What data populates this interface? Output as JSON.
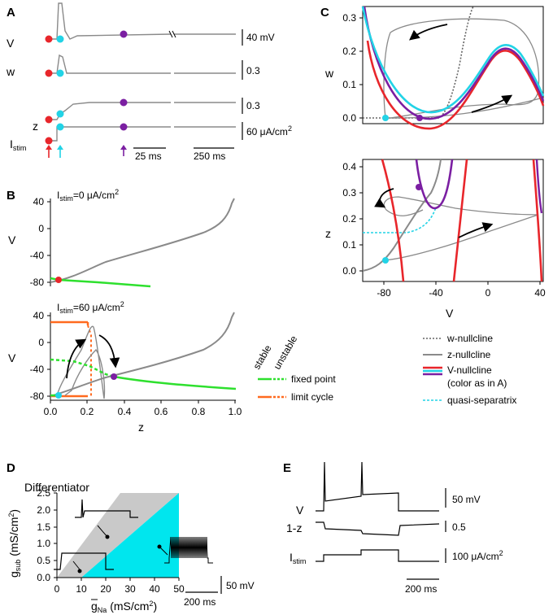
{
  "panels": {
    "a": "A",
    "b": "B",
    "c": "C",
    "d": "D",
    "e": "E"
  },
  "panel_a": {
    "row_labels": {
      "v": "V",
      "w": "w",
      "z": "z",
      "istim": "I",
      "istim_sub": "stim"
    },
    "scales": {
      "v": "40 mV",
      "w": "0.3",
      "z": "0.3",
      "i": "60 μA/cm",
      "i_sup": "2",
      "t_short": "25 ms",
      "t_long": "250 ms"
    },
    "colors": {
      "red": "#e8262b",
      "cyan": "#22d3e6",
      "purple": "#7b1fa2",
      "trace": "#8a8a8a"
    }
  },
  "panel_b": {
    "top_title": "I",
    "top_title_sub": "stim",
    "top_title_value": "=0 μA/cm",
    "bottom_title_value": "=60 μA/cm",
    "title_sup": "2",
    "ylabel": "V",
    "xlabel": "z",
    "yticks": [
      "40",
      "0",
      "-40",
      "-80"
    ],
    "xticks": [
      "0.0",
      "0.2",
      "0.4",
      "0.6",
      "0.8",
      "1.0"
    ],
    "legend_headers": {
      "stable": "stable",
      "unstable": "unstable"
    },
    "legend_items": {
      "fixed_point": "fixed point",
      "limit_cycle": "limit cycle"
    },
    "colors": {
      "fixed_point": "#2ee02e",
      "limit_cycle": "#ff6a1f",
      "nullcline": "#8a8a8a"
    }
  },
  "panel_c": {
    "top_ylabel": "w",
    "top_yticks": [
      "0.3",
      "0.2",
      "0.1",
      "0.0"
    ],
    "bottom_ylabel": "z",
    "bottom_yticks": [
      "0.4",
      "0.3",
      "0.2",
      "0.1",
      "0.0"
    ],
    "xlabel": "V",
    "xticks": [
      "-80",
      "-40",
      "0",
      "40"
    ],
    "legend": {
      "w_nullcline": "w-nullcline",
      "z_nullcline": "z-nullcline",
      "v_nullcline": "V-nullcline",
      "v_nullcline_note": "(color as in A)",
      "quasi_separatrix": "quasi-separatrix"
    }
  },
  "panel_d": {
    "title": "Differentiator",
    "ylabel": "g",
    "ylabel_sub": "sub",
    "ylabel_unit": " (mS/cm",
    "ylabel_sup": "2",
    "xlabel": "g",
    "xlabel_sub": "Na",
    "xlabel_unit": " (mS/cm",
    "xlabel_sup": "2",
    "yticks": [
      "2.5",
      "2.0",
      "1.5",
      "1.0",
      "0.5",
      "0.0"
    ],
    "xticks": [
      "0",
      "10",
      "20",
      "30",
      "40",
      "50"
    ],
    "scales": {
      "v": "50 mV",
      "t": "200 ms"
    }
  },
  "panel_e": {
    "row_labels": {
      "v": "V",
      "z": "1-z",
      "istim": "I",
      "istim_sub": "stim"
    },
    "scales": {
      "v": "50 mV",
      "z": "0.5",
      "i": "100 μA/cm",
      "i_sup": "2",
      "t": "200 ms"
    }
  }
}
